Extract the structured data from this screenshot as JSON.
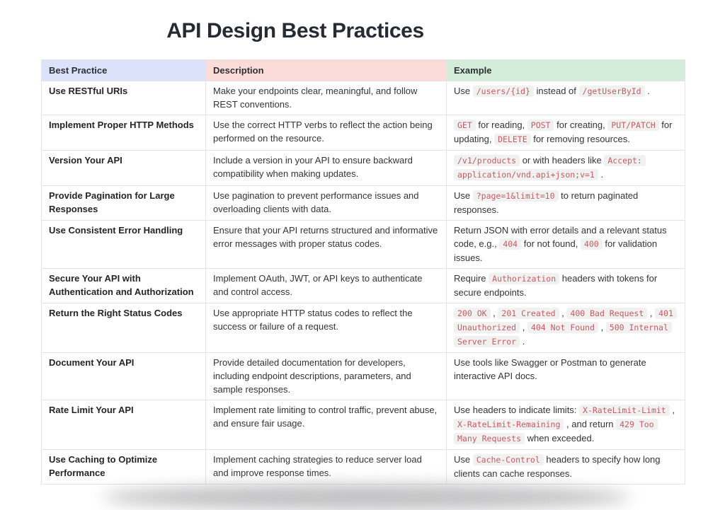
{
  "page": {
    "title": "API Design Best Practices"
  },
  "colors": {
    "code_text": "#c75b5f",
    "code_bg": "#f1f1f2",
    "table_border": "#e4e4e6",
    "title_text": "#262b33",
    "body_text": "#343434"
  },
  "table": {
    "columns": [
      {
        "label": "Best Practice",
        "bg": "#dbe2f9"
      },
      {
        "label": "Description",
        "bg": "#fbdcd9"
      },
      {
        "label": "Example",
        "bg": "#d4ecda"
      }
    ],
    "rows": [
      {
        "practice": "Use RESTful URIs",
        "description": "Make your endpoints clear, meaningful, and follow REST conventions.",
        "example": [
          {
            "t": "text",
            "v": "Use "
          },
          {
            "t": "code",
            "v": "/users/{id}"
          },
          {
            "t": "text",
            "v": " instead of "
          },
          {
            "t": "code",
            "v": "/getUserById"
          },
          {
            "t": "text",
            "v": " ."
          }
        ]
      },
      {
        "practice": "Implement Proper HTTP Methods",
        "description": "Use the correct HTTP verbs to reflect the action being performed on the resource.",
        "example": [
          {
            "t": "code",
            "v": "GET"
          },
          {
            "t": "text",
            "v": " for reading, "
          },
          {
            "t": "code",
            "v": "POST"
          },
          {
            "t": "text",
            "v": " for creating, "
          },
          {
            "t": "code",
            "v": "PUT/PATCH"
          },
          {
            "t": "text",
            "v": " for updating, "
          },
          {
            "t": "code",
            "v": "DELETE"
          },
          {
            "t": "text",
            "v": " for removing resources."
          }
        ]
      },
      {
        "practice": "Version Your API",
        "description": "Include a version in your API to ensure backward compatibility when making updates.",
        "example": [
          {
            "t": "code",
            "v": "/v1/products"
          },
          {
            "t": "text",
            "v": " or with headers like "
          },
          {
            "t": "code",
            "v": "Accept: application/vnd.api+json;v=1"
          },
          {
            "t": "text",
            "v": " ."
          }
        ]
      },
      {
        "practice": "Provide Pagination for Large Responses",
        "description": "Use pagination to prevent performance issues and overloading clients with data.",
        "example": [
          {
            "t": "text",
            "v": "Use "
          },
          {
            "t": "code",
            "v": "?page=1&limit=10"
          },
          {
            "t": "text",
            "v": " to return paginated responses."
          }
        ]
      },
      {
        "practice": "Use Consistent Error Handling",
        "description": "Ensure that your API returns structured and informative error messages with proper status codes.",
        "example": [
          {
            "t": "text",
            "v": "Return JSON with error details and a relevant status code, e.g., "
          },
          {
            "t": "code",
            "v": "404"
          },
          {
            "t": "text",
            "v": " for not found, "
          },
          {
            "t": "code",
            "v": "400"
          },
          {
            "t": "text",
            "v": " for validation issues."
          }
        ]
      },
      {
        "practice": "Secure Your API with Authentication and Authorization",
        "description": "Implement OAuth, JWT, or API keys to authenticate and control access.",
        "example": [
          {
            "t": "text",
            "v": "Require "
          },
          {
            "t": "code",
            "v": "Authorization"
          },
          {
            "t": "text",
            "v": " headers with tokens for secure endpoints."
          }
        ]
      },
      {
        "practice": "Return the Right Status Codes",
        "description": "Use appropriate HTTP status codes to reflect the success or failure of a request.",
        "example": [
          {
            "t": "code",
            "v": "200 OK"
          },
          {
            "t": "text",
            "v": " , "
          },
          {
            "t": "code",
            "v": "201 Created"
          },
          {
            "t": "text",
            "v": " , "
          },
          {
            "t": "code",
            "v": "400 Bad Request"
          },
          {
            "t": "text",
            "v": " , "
          },
          {
            "t": "code",
            "v": "401 Unauthorized"
          },
          {
            "t": "text",
            "v": " , "
          },
          {
            "t": "code",
            "v": "404 Not Found"
          },
          {
            "t": "text",
            "v": " , "
          },
          {
            "t": "code",
            "v": "500 Internal Server Error"
          },
          {
            "t": "text",
            "v": " ."
          }
        ]
      },
      {
        "practice": "Document Your API",
        "description": "Provide detailed documentation for developers, including endpoint descriptions, parameters, and sample responses.",
        "example": [
          {
            "t": "text",
            "v": "Use tools like Swagger or Postman to generate interactive API docs."
          }
        ]
      },
      {
        "practice": "Rate Limit Your API",
        "description": "Implement rate limiting to control traffic, prevent abuse, and ensure fair usage.",
        "example": [
          {
            "t": "text",
            "v": "Use headers to indicate limits: "
          },
          {
            "t": "code",
            "v": "X-RateLimit-Limit"
          },
          {
            "t": "text",
            "v": " , "
          },
          {
            "t": "code",
            "v": "X-RateLimit-Remaining"
          },
          {
            "t": "text",
            "v": " , and return "
          },
          {
            "t": "code",
            "v": "429 Too Many Requests"
          },
          {
            "t": "text",
            "v": " when exceeded."
          }
        ]
      },
      {
        "practice": "Use Caching to Optimize Performance",
        "description": "Implement caching strategies to reduce server load and improve response times.",
        "example": [
          {
            "t": "text",
            "v": "Use "
          },
          {
            "t": "code",
            "v": "Cache-Control"
          },
          {
            "t": "text",
            "v": " headers to specify how long clients can cache responses."
          }
        ]
      }
    ]
  }
}
